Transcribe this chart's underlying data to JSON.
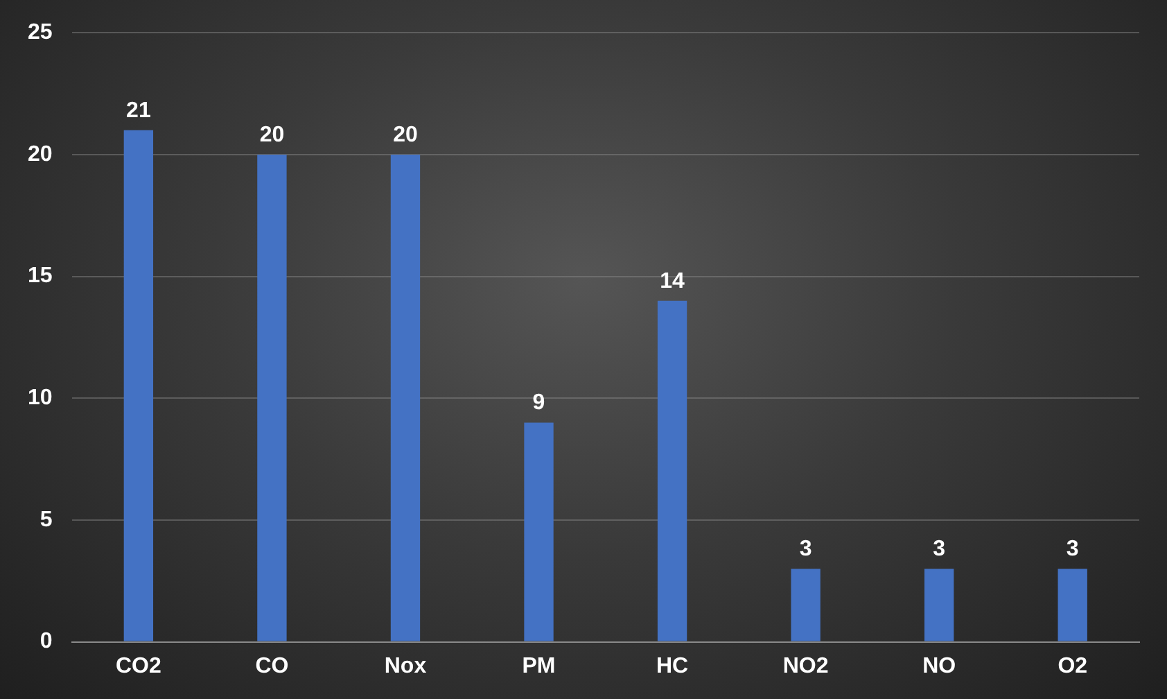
{
  "chart_data": {
    "type": "bar",
    "categories": [
      "CO2",
      "CO",
      "Nox",
      "PM",
      "HC",
      "NO2",
      "NO",
      "O2"
    ],
    "values": [
      21,
      20,
      20,
      9,
      14,
      3,
      3,
      3
    ],
    "color": "#4472c4",
    "ylim": [
      0,
      25
    ],
    "yticks": [
      0,
      5,
      10,
      15,
      20,
      25
    ],
    "grid": "y",
    "data_labels": true,
    "legend": false
  }
}
